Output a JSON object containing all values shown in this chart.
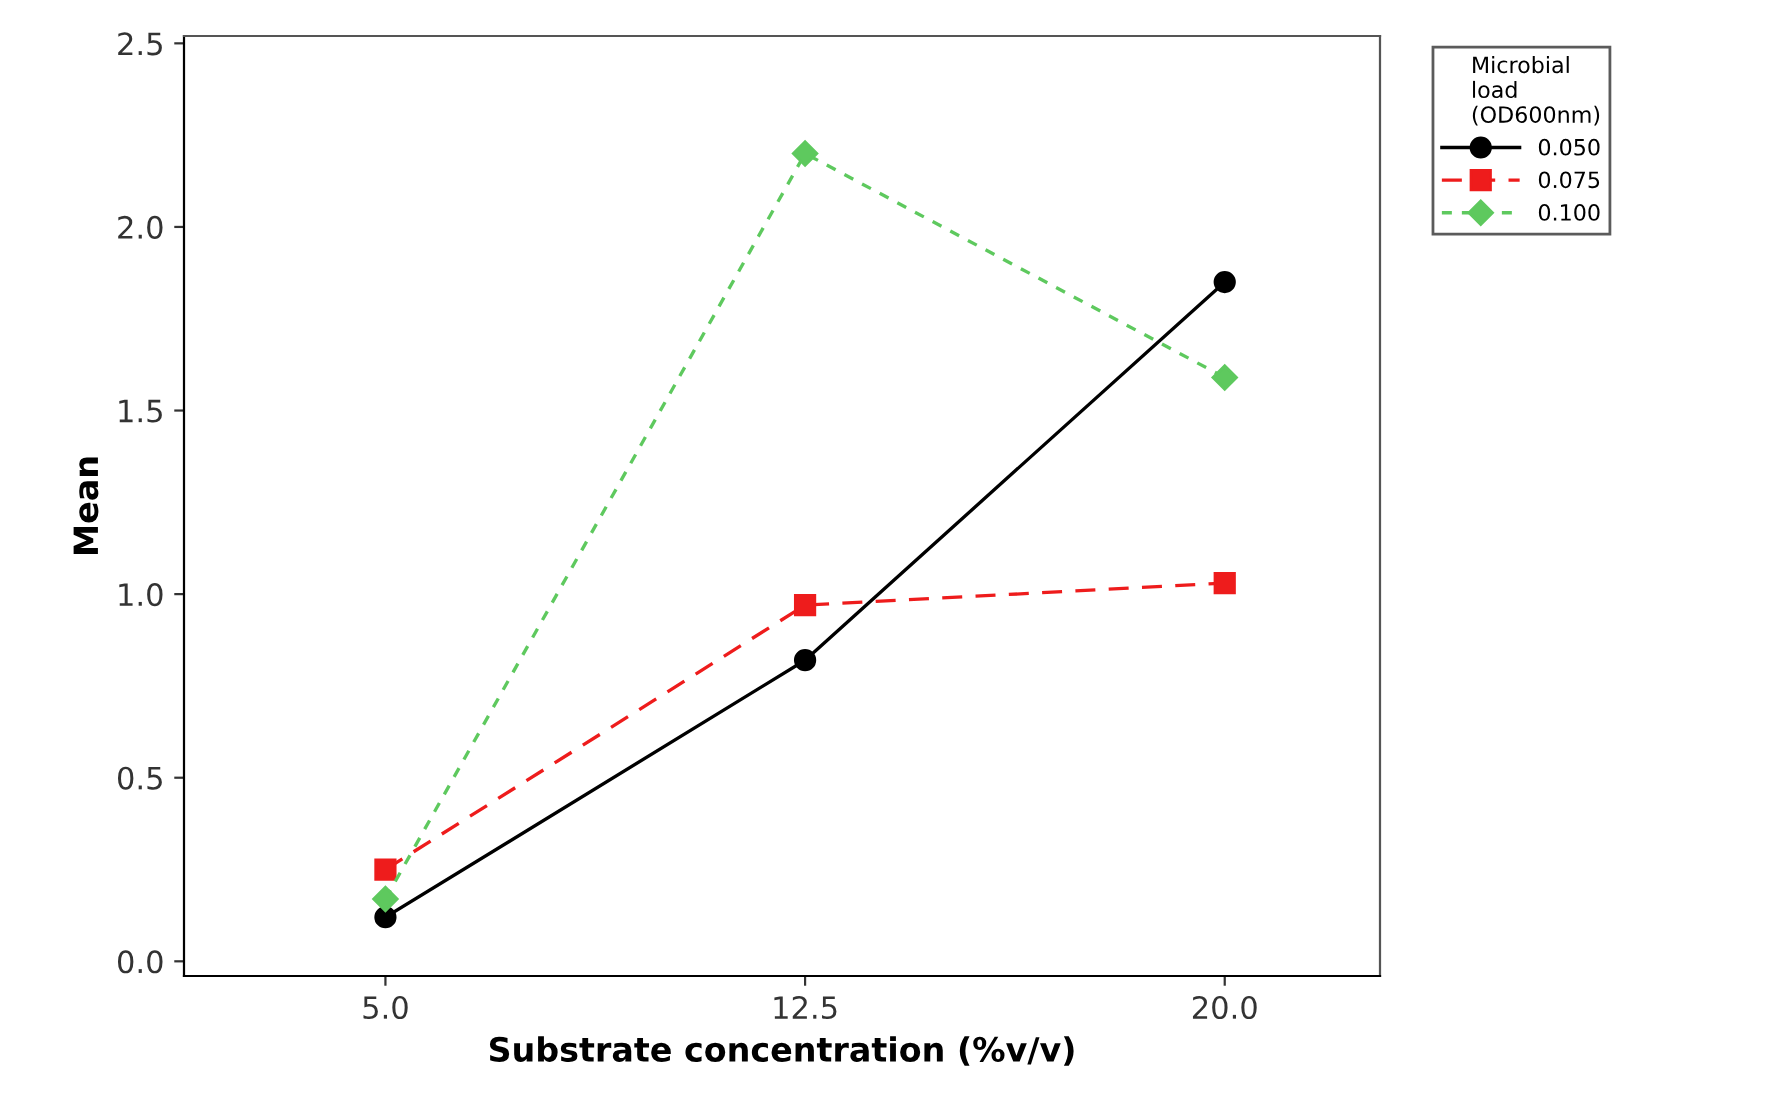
{
  "chart_data": {
    "type": "line",
    "xlabel": "Substrate concentration (%v/v)",
    "ylabel": "Mean",
    "legend_title": "Microbial\nload\n(OD600nm)",
    "legend": "top right",
    "grid": false,
    "categories": [
      "5.0",
      "12.5",
      "20.0"
    ],
    "ylim": [
      -0.04,
      2.52
    ],
    "yticks": [
      {
        "value": 0,
        "label": "0.0"
      },
      {
        "value": 0.5,
        "label": "0.5"
      },
      {
        "value": 1,
        "label": "1.0"
      },
      {
        "value": 1.5,
        "label": "1.5"
      },
      {
        "value": 2,
        "label": "2.0"
      },
      {
        "value": 2.5,
        "label": "2.5"
      }
    ],
    "series": [
      {
        "name": "0.050",
        "color": "#000000",
        "marker": "circle",
        "line_style": "solid",
        "values": [
          0.12,
          0.82,
          1.85
        ]
      },
      {
        "name": "0.075",
        "color": "#ee1c1c",
        "marker": "square",
        "line_style": "dashed",
        "values": [
          0.25,
          0.97,
          1.03
        ]
      },
      {
        "name": "0.100",
        "color": "#5ec95e",
        "marker": "diamond",
        "line_style": "dotted",
        "values": [
          0.17,
          2.2,
          1.59
        ]
      }
    ]
  }
}
